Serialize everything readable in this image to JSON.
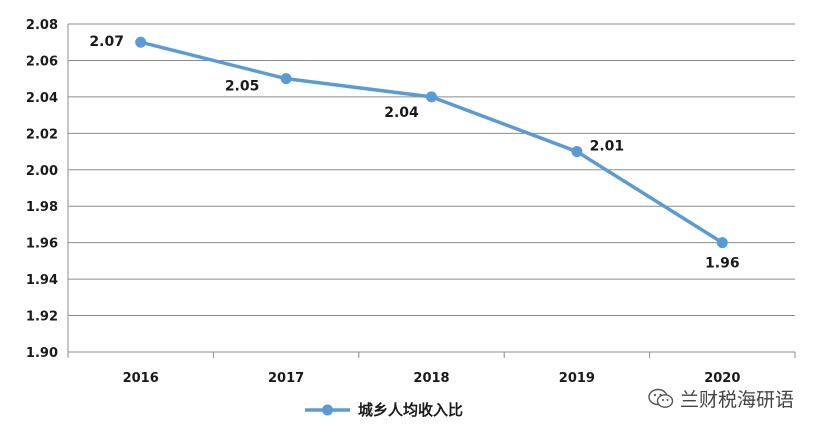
{
  "chart_data": {
    "type": "line",
    "categories": [
      "2016",
      "2017",
      "2018",
      "2019",
      "2020"
    ],
    "series": [
      {
        "name": "城乡人均收入比",
        "values": [
          2.07,
          2.05,
          2.04,
          2.01,
          1.96
        ],
        "color": "#5b9bd5"
      }
    ],
    "data_labels": [
      "2.07",
      "2.05",
      "2.04",
      "2.01",
      "1.96"
    ],
    "ylim": [
      1.9,
      2.08
    ],
    "yticks": [
      "1.90",
      "1.92",
      "1.94",
      "1.96",
      "1.98",
      "2.00",
      "2.02",
      "2.04",
      "2.06",
      "2.08"
    ],
    "grid": true,
    "legend": "bottom",
    "gridline_color": "#8c8c8c"
  },
  "watermark": {
    "text": "兰财税海研语",
    "icon": "wechat-icon"
  }
}
